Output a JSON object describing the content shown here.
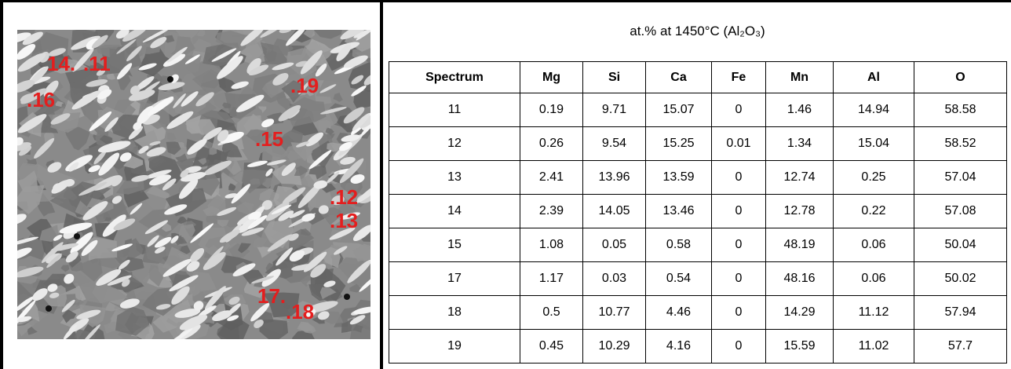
{
  "image": {
    "labels": [
      "14.",
      ".11",
      ".16",
      ".19",
      ".15",
      ".12",
      ".13",
      "17.",
      ".18"
    ]
  },
  "title": "at.% at 1450°C  (Al₂O₃)",
  "table": {
    "header": [
      "Spectrum",
      "Mg",
      "Si",
      "Ca",
      "Fe",
      "Mn",
      "Al",
      "O"
    ],
    "rows": [
      [
        "11",
        0.19,
        9.71,
        15.07,
        0,
        1.46,
        14.94,
        58.58
      ],
      [
        "12",
        0.26,
        9.54,
        15.25,
        0.01,
        1.34,
        15.04,
        58.52
      ],
      [
        "13",
        2.41,
        13.96,
        13.59,
        0,
        12.74,
        0.25,
        57.04
      ],
      [
        "14",
        2.39,
        14.05,
        13.46,
        0,
        12.78,
        0.22,
        57.08
      ],
      [
        "15",
        1.08,
        0.05,
        0.58,
        0,
        48.19,
        0.06,
        50.04
      ],
      [
        "17",
        1.17,
        0.03,
        0.54,
        0,
        48.16,
        0.06,
        50.02
      ],
      [
        "18",
        0.5,
        10.77,
        4.46,
        0,
        14.29,
        11.12,
        57.94
      ],
      [
        "19",
        0.45,
        10.29,
        4.16,
        0,
        15.59,
        11.02,
        57.7
      ]
    ]
  }
}
